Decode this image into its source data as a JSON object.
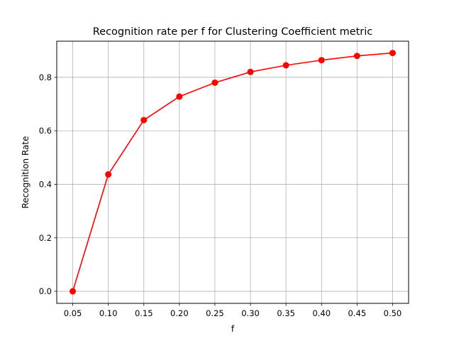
{
  "chart_data": {
    "type": "line",
    "title": "Recognition rate per f for Clustering Coefficient metric",
    "xlabel": "f",
    "ylabel": "Recognition Rate",
    "x": [
      0.05,
      0.1,
      0.15,
      0.2,
      0.25,
      0.3,
      0.35,
      0.4,
      0.45,
      0.5
    ],
    "x_tick_labels": [
      "0.05",
      "0.10",
      "0.15",
      "0.20",
      "0.25",
      "0.30",
      "0.35",
      "0.40",
      "0.45",
      "0.50"
    ],
    "y_ticks": [
      0.0,
      0.2,
      0.4,
      0.6,
      0.8
    ],
    "y_tick_labels": [
      "0.0",
      "0.2",
      "0.4",
      "0.6",
      "0.8"
    ],
    "xlim": [
      0.0275,
      0.5225
    ],
    "ylim": [
      -0.045,
      0.935
    ],
    "grid": true,
    "series": [
      {
        "values": [
          0.0,
          0.437,
          0.64,
          0.728,
          0.78,
          0.82,
          0.845,
          0.864,
          0.88,
          0.891
        ],
        "color": "#ff0000",
        "marker": "circle"
      }
    ]
  }
}
